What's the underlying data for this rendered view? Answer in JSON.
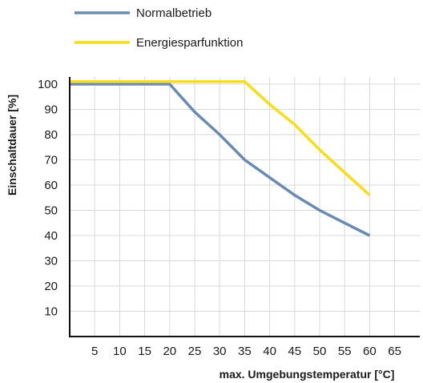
{
  "chart_data": {
    "type": "line",
    "xlabel": "max. Umgebungstemperatur [°C]",
    "ylabel": "Einschaltdauer [%]",
    "xlim": [
      0,
      70
    ],
    "ylim": [
      0,
      100
    ],
    "xticks": [
      5,
      10,
      15,
      20,
      25,
      30,
      35,
      40,
      45,
      50,
      55,
      60,
      65
    ],
    "yticks": [
      10,
      20,
      30,
      40,
      50,
      60,
      70,
      80,
      90,
      100
    ],
    "grid": "vertical and horizontal",
    "legend_position": "top",
    "series": [
      {
        "name": "Normalbetrieb",
        "color": "#6a8bb0",
        "points": [
          [
            0,
            100
          ],
          [
            20,
            100
          ],
          [
            25,
            89
          ],
          [
            30,
            80
          ],
          [
            35,
            70
          ],
          [
            40,
            63
          ],
          [
            45,
            56
          ],
          [
            50,
            50
          ],
          [
            55,
            45
          ],
          [
            60,
            40
          ]
        ]
      },
      {
        "name": "Energiesparfunktion",
        "color": "#f7dc1f",
        "points": [
          [
            0,
            101
          ],
          [
            35,
            101
          ],
          [
            40,
            92
          ],
          [
            45,
            84
          ],
          [
            50,
            74
          ],
          [
            55,
            65
          ],
          [
            60,
            56
          ]
        ]
      }
    ]
  }
}
